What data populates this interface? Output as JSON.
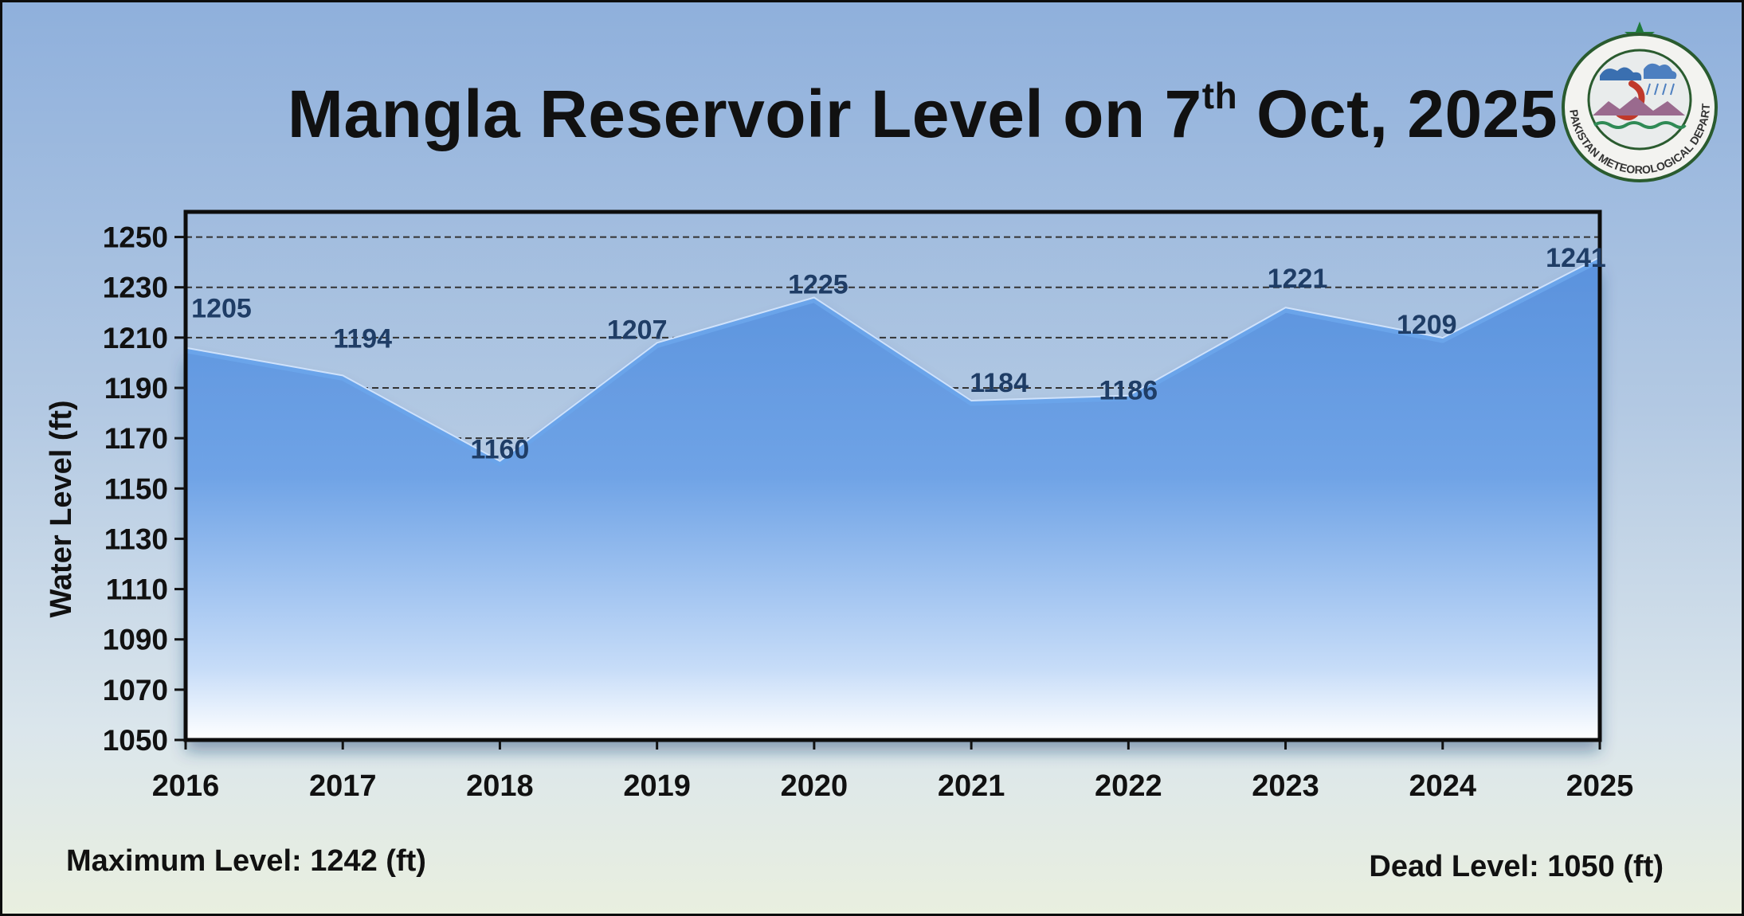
{
  "title": {
    "main": "Mangla Reservoir Level on 7",
    "sup": "th",
    "rest": " Oct, 2025"
  },
  "footer": {
    "max_level": "Maximum Level: 1242 (ft)",
    "dead_level": "Dead Level: 1050 (ft)"
  },
  "logo": {
    "text": "PAKISTAN METEOROLOGICAL DEPARTMENT",
    "icon": "pmd-emblem-icon"
  },
  "colors": {
    "area_top": "#5b95df",
    "area_bottom": "#ffffff",
    "line": "#6aa4ea",
    "label": "#1f3d66",
    "axis": "#111111"
  },
  "chart_data": {
    "type": "area",
    "title": "Mangla Reservoir Level on 7th Oct, 2025",
    "xlabel": "",
    "ylabel": "Water Level (ft)",
    "categories": [
      "2016",
      "2017",
      "2018",
      "2019",
      "2020",
      "2021",
      "2022",
      "2023",
      "2024",
      "2025"
    ],
    "values": [
      1205,
      1194,
      1160,
      1207,
      1225,
      1184,
      1186,
      1221,
      1209,
      1241
    ],
    "data_labels": [
      "1205",
      "1194",
      "1160",
      "1207",
      "1225",
      "1184",
      "1186",
      "1221",
      "1209",
      "1241"
    ],
    "ylim": [
      1050,
      1260
    ],
    "yticks": [
      1050,
      1070,
      1090,
      1110,
      1130,
      1150,
      1170,
      1190,
      1210,
      1230,
      1250
    ],
    "grid": "dashed horizontal",
    "legend": "none"
  }
}
